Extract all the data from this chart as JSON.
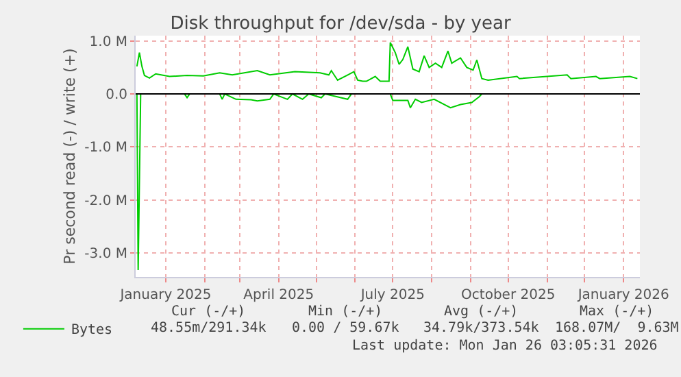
{
  "chart_data": {
    "type": "line",
    "title": "Disk throughput for /dev/sda - by year",
    "ylabel": "Pr second read (-) / write (+)",
    "xlim": [
      "2024-12-08",
      "2026-01-14"
    ],
    "xticks": [
      {
        "value": "2025-01-01",
        "label": "January 2025"
      },
      {
        "value": "2025-02-01",
        "label": null
      },
      {
        "value": "2025-03-01",
        "label": null
      },
      {
        "value": "2025-04-01",
        "label": "April 2025"
      },
      {
        "value": "2025-05-01",
        "label": null
      },
      {
        "value": "2025-06-01",
        "label": null
      },
      {
        "value": "2025-07-01",
        "label": "July 2025"
      },
      {
        "value": "2025-08-01",
        "label": null
      },
      {
        "value": "2025-09-01",
        "label": null
      },
      {
        "value": "2025-10-01",
        "label": "October 2025"
      },
      {
        "value": "2025-11-01",
        "label": null
      },
      {
        "value": "2025-12-01",
        "label": null
      },
      {
        "value": "2026-01-01",
        "label": "January 2026"
      }
    ],
    "ylim": [
      -3450000,
      1100000
    ],
    "yticks": [
      {
        "value": -3000000,
        "label": "-3.0 M"
      },
      {
        "value": -2000000,
        "label": "-2.0 M"
      },
      {
        "value": -1000000,
        "label": "-1.0 M"
      },
      {
        "value": 0,
        "label": "0.0"
      },
      {
        "value": 1000000,
        "label": "1.0 M"
      }
    ],
    "grid": true,
    "legend": "bottom left",
    "ref_lines": [
      {
        "axis": "y",
        "value": 0,
        "color": "#000000"
      }
    ],
    "annotations": [
      "Cur (-/+)",
      "Min (-/+)",
      "Avg (-/+)",
      "Max (-/+)",
      "48.55m/291.34k",
      "0.00 / 59.67k",
      "34.79k/373.54k",
      "168.07M/  9.63M",
      "Last update: Mon Jan 26 03:05:31 2026"
    ],
    "series": [
      {
        "name": "Bytes",
        "color": "#00cc00",
        "x": [
          "2024-12-09",
          "2024-12-11",
          "2024-12-13",
          "2024-12-15",
          "2024-12-19",
          "2024-12-24",
          "2025-01-04",
          "2025-01-18",
          "2025-01-31",
          "2025-02-13",
          "2025-02-23",
          "2025-03-15",
          "2025-03-25",
          "2025-04-14",
          "2025-05-04",
          "2025-05-11",
          "2025-05-13",
          "2025-05-18",
          "2025-05-31",
          "2025-06-03",
          "2025-06-07",
          "2025-06-10",
          "2025-06-17",
          "2025-06-21",
          "2025-06-28",
          "2025-06-29",
          "2025-07-03",
          "2025-07-06",
          "2025-07-09",
          "2025-07-13",
          "2025-07-17",
          "2025-07-22",
          "2025-07-26",
          "2025-07-30",
          "2025-08-04",
          "2025-08-09",
          "2025-08-14",
          "2025-08-17",
          "2025-08-24",
          "2025-08-29",
          "2025-09-03",
          "2025-09-06",
          "2025-09-10",
          "2025-09-15",
          "2025-10-08",
          "2025-10-10",
          "2025-11-17",
          "2025-11-20",
          "2025-12-10",
          "2025-12-13",
          "2026-01-06",
          "2026-01-12"
        ],
        "values": [
          520000,
          780000,
          520000,
          350000,
          300000,
          380000,
          330000,
          350000,
          340000,
          400000,
          360000,
          440000,
          360000,
          420000,
          400000,
          360000,
          440000,
          260000,
          420000,
          260000,
          240000,
          240000,
          330000,
          240000,
          240000,
          970000,
          780000,
          560000,
          650000,
          890000,
          470000,
          420000,
          720000,
          500000,
          580000,
          500000,
          810000,
          580000,
          680000,
          500000,
          450000,
          640000,
          290000,
          260000,
          330000,
          290000,
          360000,
          290000,
          330000,
          290000,
          330000,
          290000
        ]
      },
      {
        "color": "#00cc00",
        "x": [
          "2024-12-09",
          "2024-12-10",
          "2024-12-12",
          "2025-01-16",
          "2025-01-18",
          "2025-01-20",
          "2025-02-13",
          "2025-02-15",
          "2025-02-17",
          "2025-02-26",
          "2025-03-10",
          "2025-03-15",
          "2025-03-25",
          "2025-03-28",
          "2025-04-08",
          "2025-04-12",
          "2025-04-20",
          "2025-04-25",
          "2025-05-05",
          "2025-05-08",
          "2025-05-26",
          "2025-05-29",
          "2025-06-29",
          "2025-07-01",
          "2025-07-13",
          "2025-07-15",
          "2025-07-19",
          "2025-07-24",
          "2025-08-03",
          "2025-08-16",
          "2025-08-24",
          "2025-09-02",
          "2025-09-08",
          "2025-09-10",
          "2026-01-12"
        ],
        "values": [
          0,
          -3320000,
          0,
          0,
          -70000,
          0,
          0,
          -100000,
          0,
          -100000,
          -110000,
          -130000,
          -100000,
          0,
          -100000,
          0,
          -100000,
          0,
          -70000,
          0,
          -100000,
          0,
          0,
          -120000,
          -120000,
          -260000,
          -100000,
          -160000,
          -100000,
          -260000,
          -200000,
          -160000,
          -50000,
          0,
          0
        ]
      }
    ]
  }
}
